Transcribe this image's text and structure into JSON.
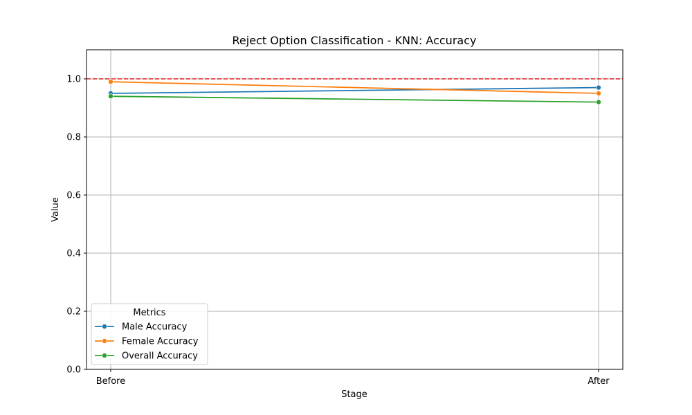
{
  "chart_data": {
    "type": "line",
    "title": "Reject Option Classification - KNN: Accuracy",
    "xlabel": "Stage",
    "ylabel": "Value",
    "categories": [
      "Before",
      "After"
    ],
    "ylim": [
      0,
      1.1
    ],
    "yticks": [
      0.0,
      0.2,
      0.4,
      0.6,
      0.8,
      1.0
    ],
    "ytick_labels": [
      "0.0",
      "0.2",
      "0.4",
      "0.6",
      "0.8",
      "1.0"
    ],
    "grid": true,
    "reference_line": {
      "y": 1.0,
      "color": "#e41a1c",
      "style": "dashed"
    },
    "legend": {
      "title": "Metrics",
      "placement": "lower-left"
    },
    "series": [
      {
        "name": "Male Accuracy",
        "color": "#1f77b4",
        "values": [
          0.95,
          0.97
        ]
      },
      {
        "name": "Female Accuracy",
        "color": "#ff7f0e",
        "values": [
          0.99,
          0.95
        ]
      },
      {
        "name": "Overall Accuracy",
        "color": "#2ca02c",
        "values": [
          0.94,
          0.92
        ]
      }
    ]
  }
}
